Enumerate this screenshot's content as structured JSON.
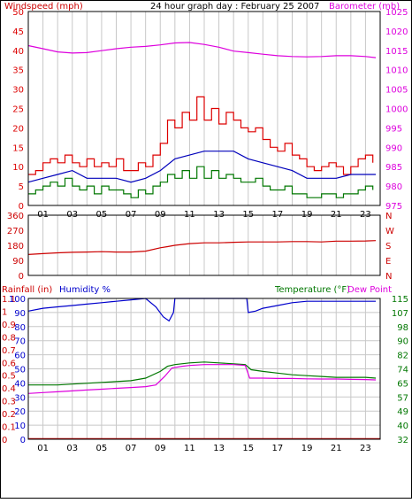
{
  "title": "24 hour graph day : February 25 2007",
  "colors": {
    "wind_gust": "#dd0000",
    "wind_avg": "#0000bb",
    "wind_min": "#007700",
    "barometer": "#dd00dd",
    "direction": "#cc0000",
    "humidity": "#0000cc",
    "temperature": "#007700",
    "dew_point": "#dd00dd",
    "rain": "#cc0000",
    "grid": "#c8c8c8",
    "frame": "#000000",
    "title_text": "#000000"
  },
  "panel1": {
    "left_label": "Windspeed (mph)",
    "right_label": "Barometer (mb)",
    "left_ticks": [
      "0",
      "5",
      "10",
      "15",
      "20",
      "25",
      "30",
      "35",
      "40",
      "45",
      "50"
    ],
    "right_ticks": [
      "975",
      "980",
      "985",
      "990",
      "995",
      "1000",
      "1005",
      "1010",
      "1015",
      "1020",
      "1025"
    ]
  },
  "panel2": {
    "left_ticks": [
      "0",
      "90",
      "180",
      "270",
      "360"
    ],
    "right_letters": [
      "N",
      "W",
      "S",
      "E",
      "N"
    ]
  },
  "panel3": {
    "left_label_rain": "Rainfall (in)",
    "left_label_humidity": "Humidity %",
    "right_label_temp": "Temperature (°F)",
    "right_label_dew": "Dew Point",
    "rain_ticks": [
      "0",
      "0.1",
      "0.2",
      "0.3",
      "0.4",
      "0.5",
      "0.6",
      "0.7",
      "0.8",
      "0.9",
      "1",
      "1.1"
    ],
    "humidity_ticks": [
      "0",
      "10",
      "20",
      "30",
      "40",
      "50",
      "60",
      "70",
      "80",
      "90",
      "100"
    ],
    "temp_ticks": [
      "32",
      "40",
      "49",
      "57",
      "65",
      "74",
      "82",
      "90",
      "98",
      "107",
      "115"
    ]
  },
  "x_ticks": [
    "01",
    "03",
    "05",
    "07",
    "09",
    "11",
    "13",
    "15",
    "17",
    "19",
    "21",
    "23"
  ],
  "chart_data": [
    {
      "type": "line",
      "title": "24 hour graph day : February 25 2007",
      "x_unit": "hour",
      "xlim": [
        0,
        24
      ],
      "ylabel": "Windspeed (mph)",
      "ylim": [
        0,
        50
      ],
      "y2label": "Barometer (mb)",
      "y2lim": [
        975,
        1025
      ],
      "series": [
        {
          "name": "Windspeed (mph)",
          "axis": "left",
          "x": [
            0,
            0.5,
            1,
            1.5,
            2,
            2.5,
            3,
            3.5,
            4,
            4.5,
            5,
            5.5,
            6,
            6.5,
            7,
            7.5,
            8,
            8.5,
            9,
            9.5,
            10,
            10.5,
            11,
            11.5,
            12,
            12.5,
            13,
            13.5,
            14,
            14.5,
            15,
            15.5,
            16,
            16.5,
            17,
            17.5,
            18,
            18.5,
            19,
            19.5,
            20,
            20.5,
            21,
            21.5,
            22,
            22.5,
            23,
            23.5
          ],
          "y": [
            8,
            9,
            11,
            12,
            11,
            13,
            11,
            10,
            12,
            10,
            11,
            10,
            12,
            9,
            9,
            11,
            10,
            13,
            16,
            22,
            20,
            24,
            22,
            28,
            22,
            25,
            21,
            24,
            22,
            20,
            19,
            20,
            17,
            15,
            14,
            16,
            13,
            12,
            10,
            9,
            10,
            11,
            10,
            8,
            10,
            12,
            13,
            11
          ]
        },
        {
          "name": "",
          "axis": "left",
          "x": [
            0,
            1,
            2,
            3,
            4,
            5,
            6,
            7,
            8,
            9,
            10,
            11,
            12,
            13,
            14,
            15,
            16,
            17,
            18,
            19,
            20,
            21,
            22,
            23,
            23.7
          ],
          "y": [
            6,
            7,
            8,
            9,
            7,
            7,
            7,
            6,
            7,
            9,
            12,
            13,
            14,
            14,
            14,
            12,
            11,
            10,
            9,
            7,
            7,
            7,
            8,
            8,
            8
          ]
        },
        {
          "name": "",
          "axis": "left",
          "x": [
            0,
            0.5,
            1,
            1.5,
            2,
            2.5,
            3,
            3.5,
            4,
            4.5,
            5,
            5.5,
            6,
            6.5,
            7,
            7.5,
            8,
            8.5,
            9,
            9.5,
            10,
            10.5,
            11,
            11.5,
            12,
            12.5,
            13,
            13.5,
            14,
            14.5,
            15,
            15.5,
            16,
            16.5,
            17,
            17.5,
            18,
            18.5,
            19,
            19.5,
            20,
            20.5,
            21,
            21.5,
            22,
            22.5,
            23,
            23.5
          ],
          "y": [
            3,
            4,
            5,
            6,
            5,
            7,
            5,
            4,
            5,
            3,
            5,
            4,
            4,
            3,
            2,
            4,
            3,
            5,
            6,
            8,
            7,
            9,
            7,
            10,
            7,
            9,
            7,
            8,
            7,
            6,
            6,
            7,
            5,
            4,
            4,
            5,
            3,
            3,
            2,
            2,
            3,
            3,
            2,
            3,
            3,
            4,
            5,
            4
          ]
        },
        {
          "name": "Barometer (mb)",
          "axis": "right",
          "x": [
            0,
            1,
            2,
            3,
            4,
            5,
            6,
            7,
            8,
            9,
            10,
            11,
            12,
            13,
            14,
            15,
            16,
            17,
            18,
            19,
            20,
            21,
            22,
            23,
            23.7
          ],
          "y": [
            1016.2,
            1015.4,
            1014.6,
            1014.3,
            1014.4,
            1014.9,
            1015.4,
            1015.8,
            1016.0,
            1016.4,
            1016.9,
            1017.0,
            1016.5,
            1015.8,
            1014.8,
            1014.4,
            1014.0,
            1013.6,
            1013.4,
            1013.3,
            1013.4,
            1013.6,
            1013.6,
            1013.4,
            1013.1
          ]
        }
      ]
    },
    {
      "type": "line",
      "x_unit": "hour",
      "xlim": [
        0,
        24
      ],
      "ylim": [
        0,
        360
      ],
      "series": [
        {
          "name": "",
          "x": [
            0,
            1,
            2,
            3,
            4,
            5,
            6,
            7,
            8,
            9,
            9.5,
            10,
            11,
            12,
            13,
            14,
            15,
            16,
            17,
            18,
            19,
            20,
            21,
            22,
            23,
            23.7
          ],
          "y": [
            125,
            130,
            135,
            138,
            140,
            142,
            140,
            140,
            145,
            165,
            172,
            180,
            190,
            195,
            195,
            198,
            200,
            200,
            200,
            202,
            202,
            200,
            205,
            205,
            206,
            208
          ]
        }
      ]
    },
    {
      "type": "line",
      "x_unit": "hour",
      "xlim": [
        0,
        24
      ],
      "ylim": [
        0,
        100
      ],
      "y2label": "Temperature (°F)",
      "y2lim": [
        32,
        115
      ],
      "series": [
        {
          "name": "Humidity %",
          "axis": "left",
          "x": [
            0,
            1,
            2,
            3,
            4,
            5,
            6,
            7,
            8,
            8.7,
            9.2,
            9.6,
            9.9,
            10.0,
            14.9,
            15.0,
            15.5,
            16,
            17,
            18,
            19,
            20,
            21,
            22,
            23,
            23.7
          ],
          "y": [
            91,
            93,
            94,
            95,
            96,
            97,
            98,
            99,
            100,
            94,
            87,
            84,
            90,
            100,
            100,
            90,
            91,
            93,
            95,
            97,
            98,
            98,
            98,
            98,
            98,
            98
          ]
        },
        {
          "name": "Temperature (°F)",
          "axis": "right",
          "x": [
            0,
            1,
            2,
            3,
            4,
            5,
            6,
            7,
            8,
            9,
            9.5,
            10,
            11,
            12,
            13,
            14,
            14.8,
            15.2,
            16,
            17,
            18,
            19,
            20,
            21,
            22,
            23,
            23.7
          ],
          "y": [
            64,
            64,
            64,
            64.5,
            65,
            65.5,
            66,
            66.5,
            68,
            72,
            75,
            76,
            77,
            77.5,
            77,
            76.5,
            76,
            73,
            72,
            71,
            70,
            69.5,
            69,
            68.5,
            68.5,
            68.5,
            68
          ]
        },
        {
          "name": "Dew Point",
          "axis": "right",
          "x": [
            0,
            1,
            2,
            3,
            4,
            5,
            6,
            7,
            8,
            8.7,
            9.3,
            9.8,
            10.5,
            11,
            12,
            13,
            14,
            14.8,
            15.1,
            16,
            17,
            18,
            19,
            20,
            21,
            22,
            23,
            23.7
          ],
          "y": [
            59,
            59.5,
            60,
            60.5,
            61,
            61.5,
            62,
            62.5,
            63,
            64,
            69,
            74,
            75,
            75.5,
            76,
            76,
            76,
            75.5,
            68,
            68,
            67.8,
            67.8,
            67.6,
            67.5,
            67.5,
            67.3,
            67.2,
            67
          ]
        },
        {
          "name": "Rainfall (in)",
          "axis": "rain",
          "ylim": [
            0,
            1.1
          ],
          "x": [
            0,
            24
          ],
          "y": [
            0,
            0
          ]
        }
      ]
    }
  ]
}
